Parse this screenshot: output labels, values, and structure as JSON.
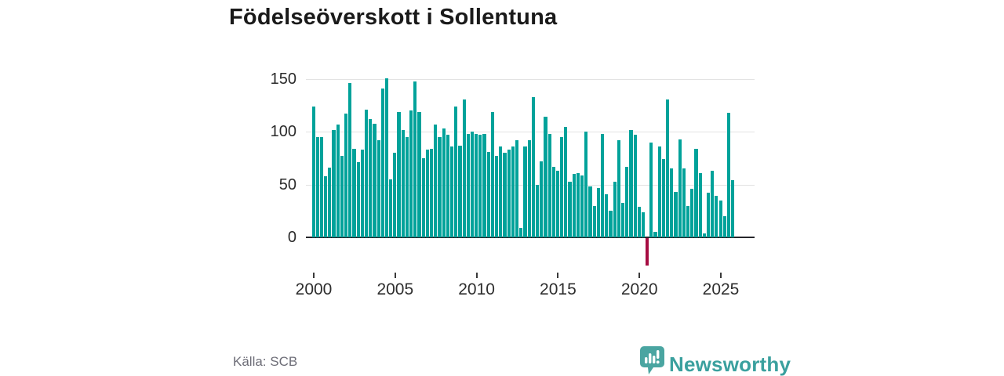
{
  "chart_data": {
    "type": "bar",
    "title": "Födelseöverskott i Sollentuna",
    "frequency": "quarterly",
    "start_quarter": "2000-Q1",
    "end_quarter": "2025-Q4",
    "values": [
      124,
      95,
      95,
      58,
      66,
      102,
      107,
      77,
      117,
      146,
      84,
      71,
      83,
      121,
      112,
      108,
      92,
      141,
      151,
      55,
      80,
      119,
      102,
      95,
      120,
      148,
      119,
      75,
      83,
      84,
      107,
      95,
      103,
      97,
      86,
      124,
      87,
      131,
      98,
      100,
      98,
      97,
      98,
      81,
      119,
      77,
      86,
      80,
      83,
      86,
      92,
      9,
      86,
      92,
      133,
      50,
      72,
      114,
      98,
      67,
      63,
      95,
      105,
      53,
      60,
      61,
      59,
      100,
      48,
      30,
      47,
      98,
      41,
      25,
      53,
      92,
      33,
      67,
      102,
      97,
      29,
      24,
      -26,
      90,
      5,
      86,
      74,
      131,
      65,
      43,
      93,
      65,
      30,
      46,
      84,
      61,
      4,
      42,
      63,
      39,
      35,
      20,
      118,
      54
    ],
    "y_ticks": [
      0,
      50,
      100,
      150
    ],
    "ylim": [
      -32,
      162
    ],
    "x_tick_years": [
      "2000",
      "2005",
      "2010",
      "2015",
      "2020",
      "2025"
    ],
    "grid": "horizontal-only",
    "legend": "none",
    "bar_color": "#00a29a",
    "negative_bar_color": "#a60d42",
    "note": "negative quarter highlighted in dark red"
  },
  "footer": {
    "source": "Källa: SCB",
    "brand": "Newsworthy",
    "brand_color": "#3aa09e"
  }
}
